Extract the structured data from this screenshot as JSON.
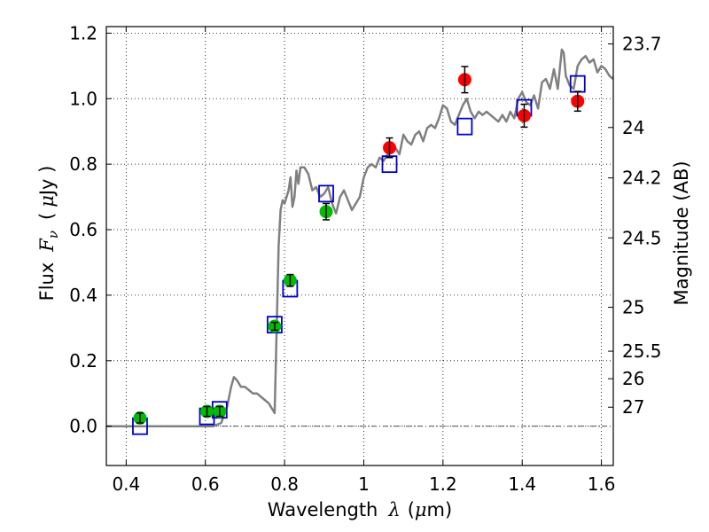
{
  "chart_data": {
    "type": "scatter",
    "title": "",
    "xlabel": {
      "prefix": "Wavelength",
      "symbol": "λ",
      "unit_open": "(",
      "unit_mu": "μ",
      "unit_rest": "m)"
    },
    "ylabel": {
      "prefix": "Flux",
      "symbol": "F",
      "subscript": "ν",
      "unit_open": "(",
      "unit_mu": "μ",
      "unit_rest": "Jy )"
    },
    "y2label": "Magnitude (AB)",
    "xlim": [
      0.35,
      1.63
    ],
    "ylim": [
      -0.12,
      1.22
    ],
    "grid": true,
    "x_ticks": [
      {
        "value": 0.4,
        "label": "0.4"
      },
      {
        "value": 0.6,
        "label": "0.6"
      },
      {
        "value": 0.8,
        "label": "0.8"
      },
      {
        "value": 1.0,
        "label": "1"
      },
      {
        "value": 1.2,
        "label": "1.2"
      },
      {
        "value": 1.4,
        "label": "1.4"
      },
      {
        "value": 1.6,
        "label": "1.6"
      }
    ],
    "y_ticks": [
      {
        "value": 0.0,
        "label": "0.0"
      },
      {
        "value": 0.2,
        "label": "0.2"
      },
      {
        "value": 0.4,
        "label": "0.4"
      },
      {
        "value": 0.6,
        "label": "0.6"
      },
      {
        "value": 0.8,
        "label": "0.8"
      },
      {
        "value": 1.0,
        "label": "1.0"
      },
      {
        "value": 1.2,
        "label": "1.2"
      }
    ],
    "y2_ticks": [
      {
        "flux": 1.167,
        "label": "23.7"
      },
      {
        "flux": 0.912,
        "label": "24"
      },
      {
        "flux": 0.758,
        "label": "24.2"
      },
      {
        "flux": 0.575,
        "label": "24.5"
      },
      {
        "flux": 0.363,
        "label": "25"
      },
      {
        "flux": 0.229,
        "label": "25.5"
      },
      {
        "flux": 0.145,
        "label": "26"
      },
      {
        "flux": 0.058,
        "label": "27"
      }
    ],
    "series": [
      {
        "name": "model spectrum",
        "kind": "line",
        "color": "#808080",
        "x": [
          0.35,
          0.4,
          0.5,
          0.57,
          0.6,
          0.62,
          0.64,
          0.655,
          0.665,
          0.672,
          0.68,
          0.69,
          0.7,
          0.71,
          0.72,
          0.73,
          0.74,
          0.75,
          0.76,
          0.77,
          0.775,
          0.78,
          0.785,
          0.79,
          0.795,
          0.8,
          0.81,
          0.815,
          0.82,
          0.825,
          0.83,
          0.835,
          0.84,
          0.85,
          0.86,
          0.87,
          0.88,
          0.89,
          0.9,
          0.91,
          0.92,
          0.93,
          0.94,
          0.95,
          0.96,
          0.97,
          0.98,
          0.99,
          1.0,
          1.01,
          1.02,
          1.03,
          1.04,
          1.05,
          1.06,
          1.07,
          1.08,
          1.09,
          1.1,
          1.11,
          1.12,
          1.13,
          1.14,
          1.15,
          1.16,
          1.17,
          1.18,
          1.19,
          1.2,
          1.21,
          1.22,
          1.23,
          1.24,
          1.25,
          1.26,
          1.27,
          1.28,
          1.29,
          1.3,
          1.31,
          1.32,
          1.33,
          1.34,
          1.35,
          1.36,
          1.37,
          1.38,
          1.39,
          1.4,
          1.41,
          1.42,
          1.43,
          1.44,
          1.45,
          1.46,
          1.47,
          1.48,
          1.49,
          1.5,
          1.505,
          1.51,
          1.52,
          1.53,
          1.54,
          1.55,
          1.56,
          1.57,
          1.58,
          1.59,
          1.6,
          1.61,
          1.62,
          1.63
        ],
        "y": [
          0.0,
          0.0,
          0.0,
          0.0,
          0.0,
          0.0,
          0.01,
          0.06,
          0.12,
          0.15,
          0.14,
          0.12,
          0.12,
          0.11,
          0.1,
          0.1,
          0.09,
          0.08,
          0.07,
          0.05,
          0.04,
          0.3,
          0.55,
          0.66,
          0.69,
          0.68,
          0.72,
          0.76,
          0.67,
          0.7,
          0.78,
          0.74,
          0.79,
          0.79,
          0.77,
          0.72,
          0.73,
          0.7,
          0.71,
          0.73,
          0.68,
          0.65,
          0.7,
          0.72,
          0.69,
          0.66,
          0.68,
          0.7,
          0.76,
          0.79,
          0.8,
          0.79,
          0.82,
          0.81,
          0.83,
          0.84,
          0.85,
          0.83,
          0.89,
          0.87,
          0.86,
          0.89,
          0.9,
          0.87,
          0.91,
          0.92,
          0.91,
          0.94,
          0.98,
          0.97,
          0.93,
          0.92,
          0.95,
          0.98,
          1.0,
          0.96,
          0.94,
          0.96,
          0.95,
          0.96,
          0.95,
          0.94,
          0.93,
          0.95,
          0.93,
          0.96,
          0.94,
          1.0,
          1.02,
          0.99,
          0.98,
          1.01,
          0.97,
          1.05,
          1.06,
          1.03,
          1.09,
          1.03,
          1.15,
          1.14,
          1.07,
          1.04,
          1.03,
          1.1,
          1.12,
          1.13,
          1.11,
          1.12,
          1.08,
          1.1,
          1.09,
          1.07,
          1.06
        ]
      },
      {
        "name": "observed (green)",
        "kind": "points",
        "color": "#00bb00",
        "x": [
          0.435,
          0.604,
          0.636,
          0.775,
          0.814,
          0.905
        ],
        "y": [
          0.025,
          0.045,
          0.045,
          0.305,
          0.445,
          0.655
        ],
        "err": [
          0.015,
          0.015,
          0.015,
          0.012,
          0.018,
          0.025
        ]
      },
      {
        "name": "observed (red)",
        "kind": "points",
        "color": "#ff0000",
        "x": [
          1.065,
          1.255,
          1.405,
          1.54
        ],
        "y": [
          0.85,
          1.058,
          0.948,
          0.992
        ],
        "err": [
          0.03,
          0.04,
          0.035,
          0.03
        ]
      },
      {
        "name": "model photometry",
        "kind": "squares",
        "color": "#0000cc",
        "x": [
          0.435,
          0.604,
          0.636,
          0.775,
          0.814,
          0.905,
          1.065,
          1.255,
          1.405,
          1.54
        ],
        "y": [
          0.0,
          0.03,
          0.05,
          0.31,
          0.42,
          0.71,
          0.8,
          0.915,
          0.972,
          1.045
        ]
      }
    ]
  }
}
